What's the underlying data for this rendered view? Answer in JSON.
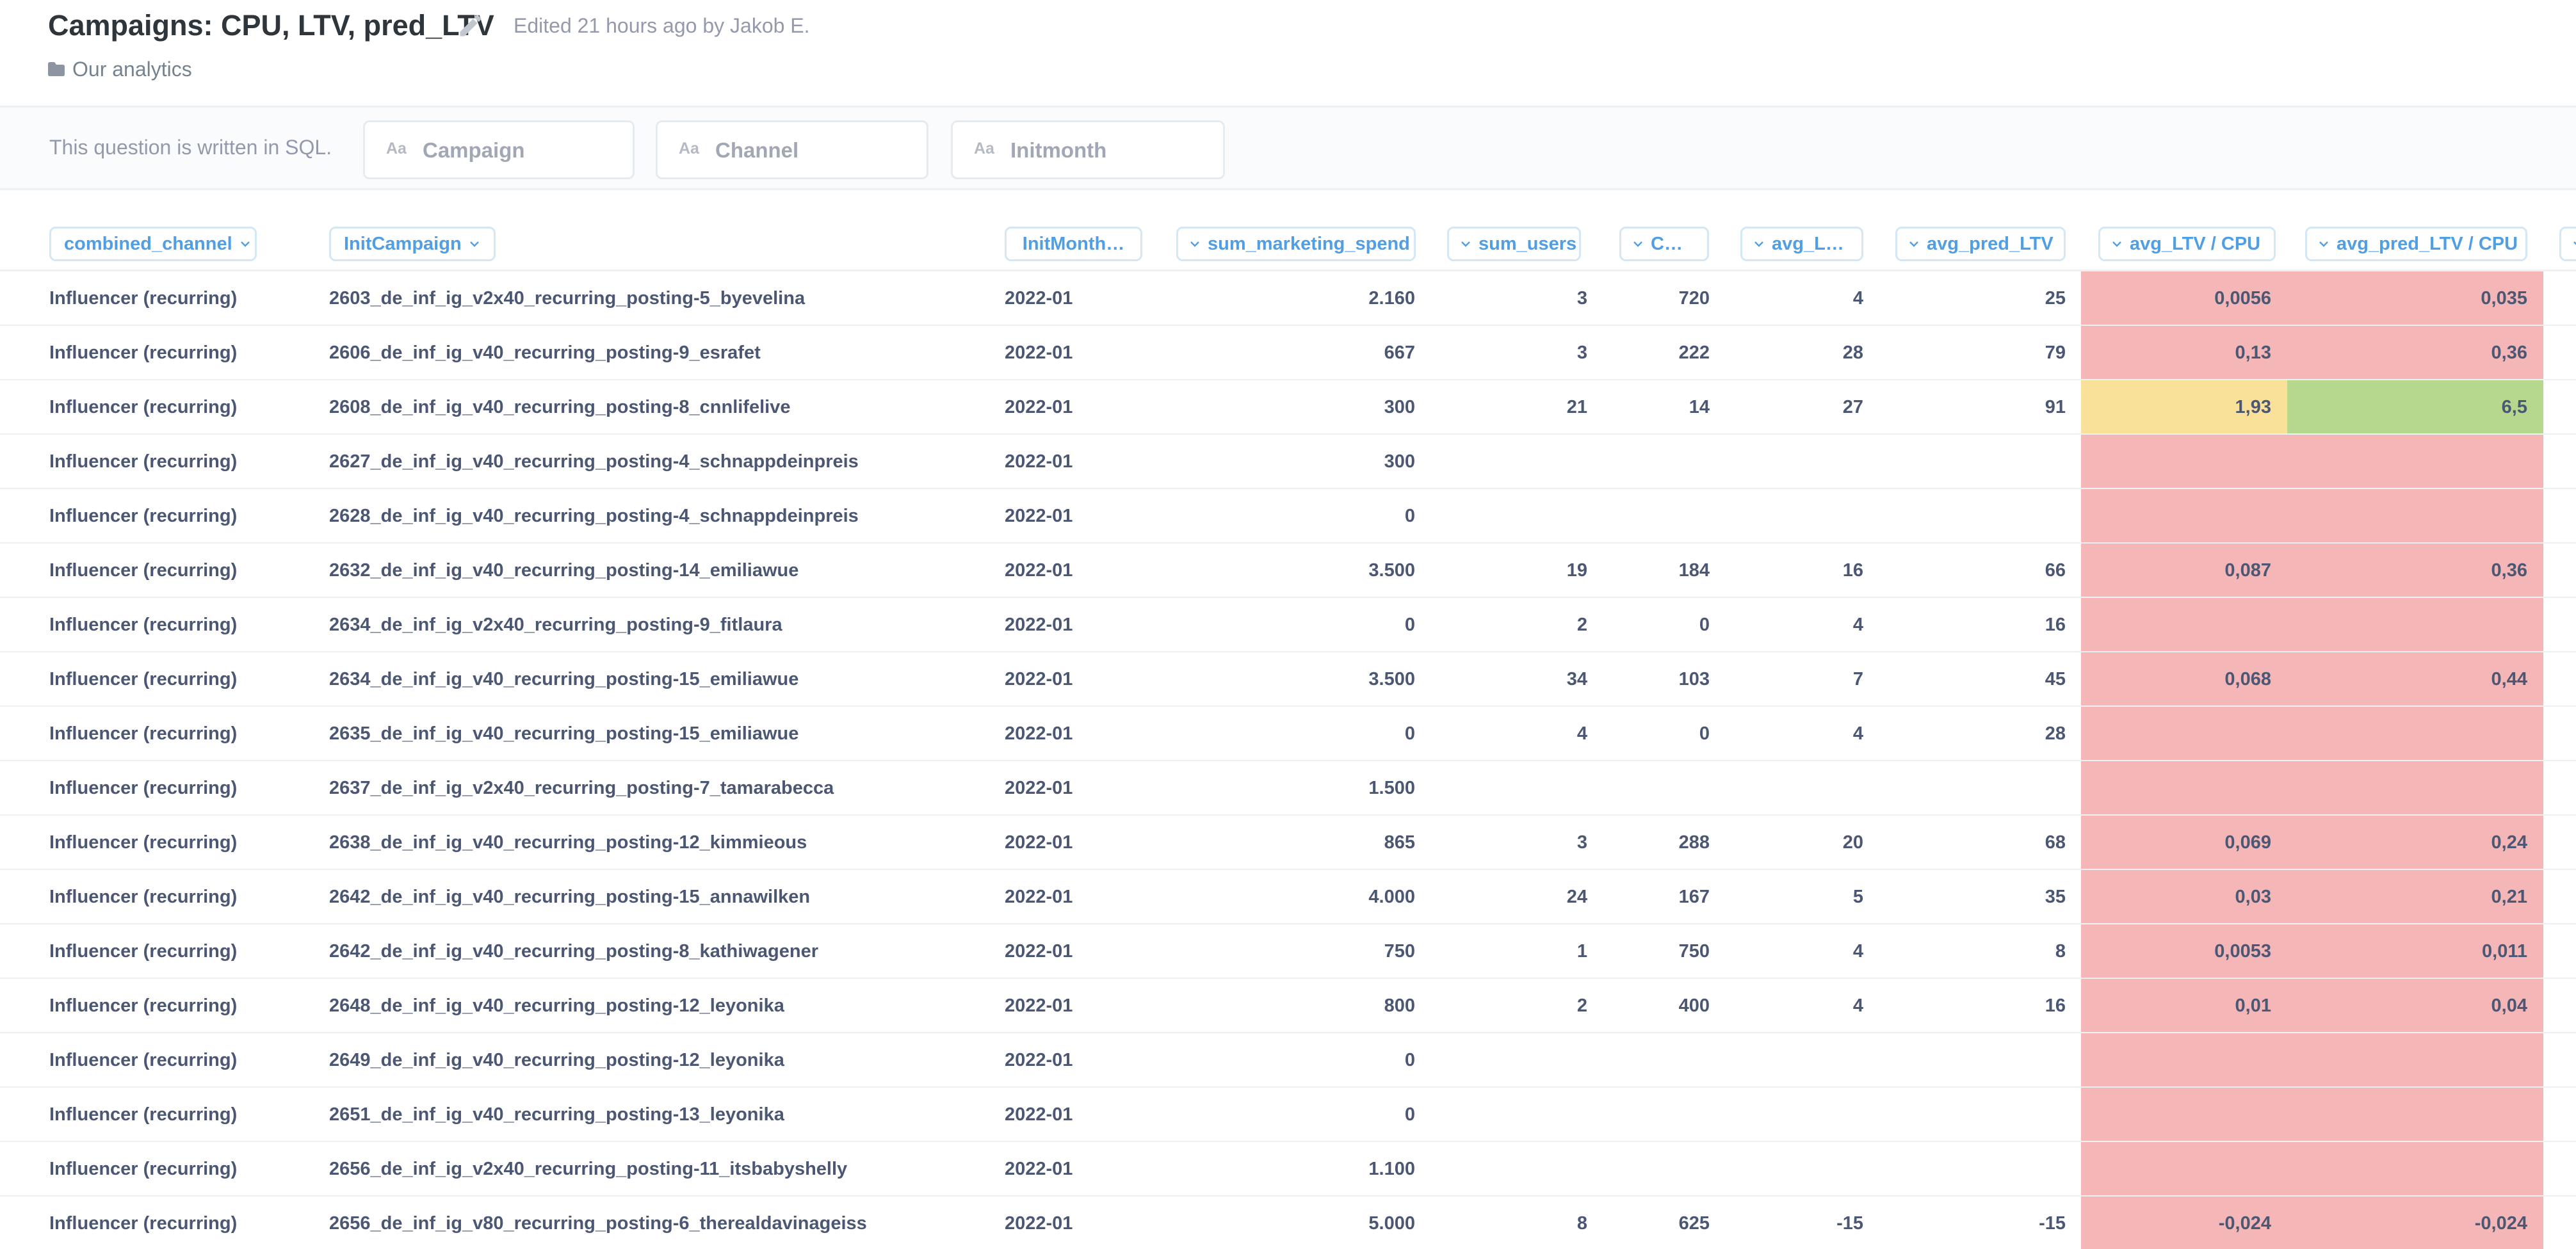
{
  "header": {
    "title": "Campaigns: CPU, LTV, pred_LTV",
    "edit_icon": "pencil-icon",
    "edited": "Edited 21 hours ago by Jakob E.",
    "collection": "Our analytics",
    "collection_icon": "folder-icon"
  },
  "filters": {
    "note": "This question is written in SQL.",
    "type_icon": "Aa",
    "items": [
      {
        "placeholder": "Campaign"
      },
      {
        "placeholder": "Channel"
      },
      {
        "placeholder": "Initmonth"
      }
    ]
  },
  "table": {
    "columns": [
      {
        "label": "combined_channel"
      },
      {
        "label": "InitCampaign"
      },
      {
        "label": "InitMonth…"
      },
      {
        "label": "sum_marketing_spend"
      },
      {
        "label": "sum_users"
      },
      {
        "label": "C…"
      },
      {
        "label": "avg_L…"
      },
      {
        "label": "avg_pred_LTV"
      },
      {
        "label": "avg_LTV / CPU"
      },
      {
        "label": "avg_pred_LTV / CPU"
      }
    ],
    "colors": {
      "bad": "#f4b6b6",
      "mid": "#f9e19a",
      "good": "#b5d88e",
      "accent": "#509ee3",
      "text": "#4c5773"
    },
    "rows": [
      {
        "channel": "Influencer (recurring)",
        "campaign": "2603_de_inf_ig_v2x40_recurring_posting-5_byevelina",
        "month": "2022-01",
        "spend": "2.160",
        "users": "3",
        "cpu": "720",
        "ltv": "4",
        "pred": "25",
        "ltv_cpu": "0,0056",
        "pred_cpu": "0,035",
        "ltv_tone": "bad",
        "pred_tone": "bad"
      },
      {
        "channel": "Influencer (recurring)",
        "campaign": "2606_de_inf_ig_v40_recurring_posting-9_esrafet",
        "month": "2022-01",
        "spend": "667",
        "users": "3",
        "cpu": "222",
        "ltv": "28",
        "pred": "79",
        "ltv_cpu": "0,13",
        "pred_cpu": "0,36",
        "ltv_tone": "bad",
        "pred_tone": "bad"
      },
      {
        "channel": "Influencer (recurring)",
        "campaign": "2608_de_inf_ig_v40_recurring_posting-8_cnnlifelive",
        "month": "2022-01",
        "spend": "300",
        "users": "21",
        "cpu": "14",
        "ltv": "27",
        "pred": "91",
        "ltv_cpu": "1,93",
        "pred_cpu": "6,5",
        "ltv_tone": "mid",
        "pred_tone": "good"
      },
      {
        "channel": "Influencer (recurring)",
        "campaign": "2627_de_inf_ig_v40_recurring_posting-4_schnappdeinpreis",
        "month": "2022-01",
        "spend": "300",
        "users": "",
        "cpu": "",
        "ltv": "",
        "pred": "",
        "ltv_cpu": "",
        "pred_cpu": "",
        "ltv_tone": "bad",
        "pred_tone": "bad"
      },
      {
        "channel": "Influencer (recurring)",
        "campaign": "2628_de_inf_ig_v40_recurring_posting-4_schnappdeinpreis",
        "month": "2022-01",
        "spend": "0",
        "users": "",
        "cpu": "",
        "ltv": "",
        "pred": "",
        "ltv_cpu": "",
        "pred_cpu": "",
        "ltv_tone": "bad",
        "pred_tone": "bad"
      },
      {
        "channel": "Influencer (recurring)",
        "campaign": "2632_de_inf_ig_v40_recurring_posting-14_emiliawue",
        "month": "2022-01",
        "spend": "3.500",
        "users": "19",
        "cpu": "184",
        "ltv": "16",
        "pred": "66",
        "ltv_cpu": "0,087",
        "pred_cpu": "0,36",
        "ltv_tone": "bad",
        "pred_tone": "bad"
      },
      {
        "channel": "Influencer (recurring)",
        "campaign": "2634_de_inf_ig_v2x40_recurring_posting-9_fitlaura",
        "month": "2022-01",
        "spend": "0",
        "users": "2",
        "cpu": "0",
        "ltv": "4",
        "pred": "16",
        "ltv_cpu": "",
        "pred_cpu": "",
        "ltv_tone": "bad",
        "pred_tone": "bad"
      },
      {
        "channel": "Influencer (recurring)",
        "campaign": "2634_de_inf_ig_v40_recurring_posting-15_emiliawue",
        "month": "2022-01",
        "spend": "3.500",
        "users": "34",
        "cpu": "103",
        "ltv": "7",
        "pred": "45",
        "ltv_cpu": "0,068",
        "pred_cpu": "0,44",
        "ltv_tone": "bad",
        "pred_tone": "bad"
      },
      {
        "channel": "Influencer (recurring)",
        "campaign": "2635_de_inf_ig_v40_recurring_posting-15_emiliawue",
        "month": "2022-01",
        "spend": "0",
        "users": "4",
        "cpu": "0",
        "ltv": "4",
        "pred": "28",
        "ltv_cpu": "",
        "pred_cpu": "",
        "ltv_tone": "bad",
        "pred_tone": "bad"
      },
      {
        "channel": "Influencer (recurring)",
        "campaign": "2637_de_inf_ig_v2x40_recurring_posting-7_tamarabecca",
        "month": "2022-01",
        "spend": "1.500",
        "users": "",
        "cpu": "",
        "ltv": "",
        "pred": "",
        "ltv_cpu": "",
        "pred_cpu": "",
        "ltv_tone": "bad",
        "pred_tone": "bad"
      },
      {
        "channel": "Influencer (recurring)",
        "campaign": "2638_de_inf_ig_v40_recurring_posting-12_kimmieous",
        "month": "2022-01",
        "spend": "865",
        "users": "3",
        "cpu": "288",
        "ltv": "20",
        "pred": "68",
        "ltv_cpu": "0,069",
        "pred_cpu": "0,24",
        "ltv_tone": "bad",
        "pred_tone": "bad"
      },
      {
        "channel": "Influencer (recurring)",
        "campaign": "2642_de_inf_ig_v40_recurring_posting-15_annawilken",
        "month": "2022-01",
        "spend": "4.000",
        "users": "24",
        "cpu": "167",
        "ltv": "5",
        "pred": "35",
        "ltv_cpu": "0,03",
        "pred_cpu": "0,21",
        "ltv_tone": "bad",
        "pred_tone": "bad"
      },
      {
        "channel": "Influencer (recurring)",
        "campaign": "2642_de_inf_ig_v40_recurring_posting-8_kathiwagener",
        "month": "2022-01",
        "spend": "750",
        "users": "1",
        "cpu": "750",
        "ltv": "4",
        "pred": "8",
        "ltv_cpu": "0,0053",
        "pred_cpu": "0,011",
        "ltv_tone": "bad",
        "pred_tone": "bad"
      },
      {
        "channel": "Influencer (recurring)",
        "campaign": "2648_de_inf_ig_v40_recurring_posting-12_leyonika",
        "month": "2022-01",
        "spend": "800",
        "users": "2",
        "cpu": "400",
        "ltv": "4",
        "pred": "16",
        "ltv_cpu": "0,01",
        "pred_cpu": "0,04",
        "ltv_tone": "bad",
        "pred_tone": "bad"
      },
      {
        "channel": "Influencer (recurring)",
        "campaign": "2649_de_inf_ig_v40_recurring_posting-12_leyonika",
        "month": "2022-01",
        "spend": "0",
        "users": "",
        "cpu": "",
        "ltv": "",
        "pred": "",
        "ltv_cpu": "",
        "pred_cpu": "",
        "ltv_tone": "bad",
        "pred_tone": "bad"
      },
      {
        "channel": "Influencer (recurring)",
        "campaign": "2651_de_inf_ig_v40_recurring_posting-13_leyonika",
        "month": "2022-01",
        "spend": "0",
        "users": "",
        "cpu": "",
        "ltv": "",
        "pred": "",
        "ltv_cpu": "",
        "pred_cpu": "",
        "ltv_tone": "bad",
        "pred_tone": "bad"
      },
      {
        "channel": "Influencer (recurring)",
        "campaign": "2656_de_inf_ig_v2x40_recurring_posting-11_itsbabyshelly",
        "month": "2022-01",
        "spend": "1.100",
        "users": "",
        "cpu": "",
        "ltv": "",
        "pred": "",
        "ltv_cpu": "",
        "pred_cpu": "",
        "ltv_tone": "bad",
        "pred_tone": "bad"
      },
      {
        "channel": "Influencer (recurring)",
        "campaign": "2656_de_inf_ig_v80_recurring_posting-6_therealdavinageiss",
        "month": "2022-01",
        "spend": "5.000",
        "users": "8",
        "cpu": "625",
        "ltv": "-15",
        "pred": "-15",
        "ltv_cpu": "-0,024",
        "pred_cpu": "-0,024",
        "ltv_tone": "bad",
        "pred_tone": "bad"
      }
    ]
  }
}
